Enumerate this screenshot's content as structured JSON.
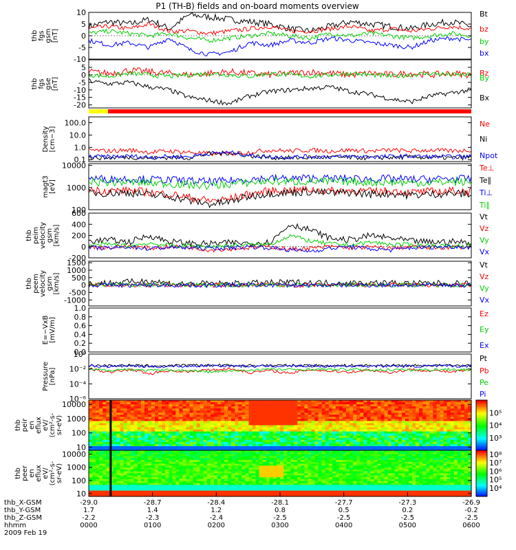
{
  "title": "P1 (TH-B) fields and on-board moments overview",
  "chart_data": [
    {
      "type": "line",
      "panel": "fgs_gsm",
      "ylabel": [
        "thb",
        "fgs",
        "gsm",
        "[nT]"
      ],
      "ylim": [
        -10,
        10
      ],
      "ticks": [
        "10",
        "5",
        "0",
        "-5",
        "-10"
      ],
      "tick_values": [
        10,
        5,
        0,
        -5,
        -10
      ],
      "series": [
        {
          "name": "Bt",
          "color": "#000000",
          "values": [
            4,
            6,
            5,
            7,
            3,
            9,
            8,
            7,
            6,
            5,
            3,
            2,
            4,
            6,
            5,
            4,
            3,
            5,
            6,
            4
          ]
        },
        {
          "name": "bz",
          "color": "#ff0000",
          "values": [
            3,
            4,
            3,
            5,
            2,
            2,
            1,
            2,
            3,
            4,
            2,
            2,
            3,
            4,
            2,
            3,
            2,
            3,
            4,
            3
          ]
        },
        {
          "name": "by",
          "color": "#00d000",
          "values": [
            1,
            2,
            1,
            0,
            1,
            -1,
            -2,
            -1,
            0,
            1,
            0,
            -1,
            1,
            0,
            1,
            0,
            -1,
            0,
            1,
            0
          ]
        },
        {
          "name": "bx",
          "color": "#0000ff",
          "values": [
            -2,
            -4,
            -3,
            -5,
            -1,
            -6,
            -8,
            -7,
            -3,
            -4,
            -2,
            -3,
            -1,
            -2,
            -3,
            -4,
            -5,
            -2,
            -1,
            -2
          ]
        }
      ]
    },
    {
      "type": "line",
      "panel": "fgs_gse",
      "ylabel": [
        "thb",
        "fgs",
        "gse",
        "[nT]"
      ],
      "ylim": [
        -22,
        10
      ],
      "ticks": [
        "5",
        "0",
        "-5",
        "-10",
        "-15",
        "-20"
      ],
      "tick_values": [
        5,
        0,
        -5,
        -10,
        -15,
        -20
      ],
      "series": [
        {
          "name": "Bz",
          "color": "#ff0000",
          "values": [
            2,
            1,
            3,
            2,
            1,
            0,
            1,
            2,
            1,
            0,
            1,
            2,
            1,
            0,
            1,
            0,
            1,
            0,
            1,
            0
          ]
        },
        {
          "name": "By",
          "color": "#00d000",
          "values": [
            0,
            -1,
            1,
            0,
            -1,
            0,
            1,
            0,
            -1,
            1,
            0,
            -1,
            0,
            1,
            0,
            -1,
            0,
            1,
            0,
            0
          ]
        },
        {
          "name": "Bx",
          "color": "#000000",
          "values": [
            -4,
            -6,
            -5,
            -8,
            -10,
            -15,
            -17,
            -19,
            -14,
            -11,
            -10,
            -9,
            -8,
            -11,
            -13,
            -16,
            -18,
            -14,
            -12,
            -10
          ]
        }
      ]
    },
    {
      "type": "line",
      "panel": "density",
      "scale": "log",
      "ylabel": [
        "Density",
        "[cm−3]"
      ],
      "ylim": [
        0.07,
        300
      ],
      "ticks": [
        "100.0",
        "10.0",
        "1.0",
        "0.1"
      ],
      "tick_values": [
        100,
        10,
        1,
        0.1
      ],
      "series": [
        {
          "name": "Ne",
          "color": "#ff0000",
          "values": [
            0.6,
            0.5,
            0.6,
            0.4,
            0.5,
            0.4,
            0.3,
            0.3,
            0.4,
            0.6,
            0.5,
            0.6,
            0.5,
            0.6,
            0.5,
            0.6,
            0.5,
            0.6,
            0.5,
            0.6
          ]
        },
        {
          "name": "Ni",
          "color": "#000000",
          "values": [
            0.15,
            0.14,
            0.16,
            0.13,
            0.15,
            0.14,
            0.3,
            0.35,
            0.2,
            0.15,
            0.14,
            0.15,
            0.16,
            0.15,
            0.14,
            0.15,
            0.16,
            0.15,
            0.14,
            0.15
          ]
        },
        {
          "name": "Npot",
          "color": "#0000ff",
          "values": [
            0.18,
            0.17,
            0.19,
            0.16,
            0.18,
            0.17,
            0.32,
            0.38,
            0.22,
            0.17,
            0.16,
            0.18,
            0.17,
            0.18,
            0.17,
            0.18,
            0.19,
            0.18,
            0.17,
            0.18
          ]
        }
      ]
    },
    {
      "type": "line",
      "panel": "temperature",
      "scale": "log",
      "ylabel": [
        "magt3",
        "[eV]"
      ],
      "ylim": [
        100,
        12000
      ],
      "ticks": [
        "10000",
        "1000",
        "100"
      ],
      "tick_values": [
        10000,
        1000,
        100
      ],
      "series": [
        {
          "name": "Te⊥",
          "color": "#ff0000",
          "values": [
            800,
            700,
            750,
            600,
            500,
            350,
            250,
            300,
            500,
            700,
            750,
            800,
            700,
            750,
            650,
            700,
            600,
            650,
            700,
            650
          ]
        },
        {
          "name": "Te∥",
          "color": "#000000",
          "values": [
            600,
            550,
            600,
            450,
            400,
            250,
            180,
            220,
            400,
            550,
            600,
            650,
            550,
            600,
            500,
            550,
            450,
            500,
            550,
            500
          ]
        },
        {
          "name": "Ti⊥",
          "color": "#0000ff",
          "values": [
            2600,
            2400,
            2500,
            2300,
            2200,
            2000,
            1800,
            2000,
            2400,
            2600,
            2500,
            2700,
            2500,
            2600,
            2400,
            2500,
            2300,
            2400,
            2500,
            2400
          ]
        },
        {
          "name": "Ti∥",
          "color": "#00d000",
          "values": [
            1800,
            1700,
            1750,
            1600,
            1500,
            1300,
            1200,
            1400,
            1700,
            1900,
            1800,
            1900,
            1800,
            1850,
            1700,
            1750,
            1650,
            1700,
            1800,
            1700
          ]
        }
      ]
    },
    {
      "type": "line",
      "panel": "peim_velocity",
      "ylabel": [
        "thb",
        "peim",
        "velocity",
        "gsm",
        "[km/s]"
      ],
      "ylim": [
        -200,
        600
      ],
      "ticks": [
        "600",
        "400",
        "200",
        "0",
        "-200"
      ],
      "tick_values": [
        600,
        400,
        200,
        0,
        -200
      ],
      "series": [
        {
          "name": "Vt",
          "color": "#000000",
          "values": [
            100,
            120,
            80,
            200,
            90,
            60,
            50,
            70,
            60,
            80,
            400,
            300,
            150,
            120,
            200,
            150,
            100,
            80,
            90,
            70
          ]
        },
        {
          "name": "Vz",
          "color": "#ff0000",
          "values": [
            0,
            -20,
            10,
            -30,
            0,
            -10,
            -60,
            -40,
            -20,
            0,
            -50,
            -30,
            0,
            -20,
            -10,
            -30,
            0,
            -20,
            -10,
            0
          ]
        },
        {
          "name": "Vy",
          "color": "#00d000",
          "values": [
            20,
            40,
            10,
            60,
            20,
            10,
            0,
            20,
            30,
            40,
            200,
            100,
            50,
            30,
            80,
            40,
            30,
            20,
            10,
            20
          ]
        },
        {
          "name": "Vx",
          "color": "#0000ff",
          "values": [
            -20,
            -30,
            0,
            -40,
            -10,
            -20,
            -30,
            -20,
            0,
            -20,
            -60,
            -80,
            -30,
            0,
            -40,
            -60,
            -20,
            -10,
            0,
            -10
          ]
        }
      ]
    },
    {
      "type": "line",
      "panel": "peem_velocity",
      "ylabel": [
        "thb",
        "peem",
        "velocity",
        "gsm",
        "[km/s]"
      ],
      "ylim": [
        -1400,
        1600
      ],
      "ticks": [
        "1500",
        "1000",
        "500",
        "0",
        "-500",
        "-1000"
      ],
      "tick_values": [
        1500,
        1000,
        500,
        0,
        -500,
        -1000
      ],
      "series": [
        {
          "name": "Vt",
          "color": "#000000",
          "values": [
            100,
            150,
            200,
            300,
            120,
            80,
            100,
            90,
            120,
            150,
            180,
            160,
            140,
            120,
            150,
            130,
            110,
            120,
            100,
            110
          ]
        },
        {
          "name": "Vz",
          "color": "#ff0000",
          "values": [
            0,
            -20,
            10,
            -30,
            0,
            -10,
            -20,
            -10,
            0,
            10,
            -20,
            -10,
            0,
            10,
            -10,
            0,
            10,
            -10,
            0,
            0
          ]
        },
        {
          "name": "Vy",
          "color": "#00d000",
          "values": [
            10,
            20,
            0,
            10,
            20,
            0,
            -10,
            0,
            10,
            20,
            10,
            0,
            10,
            20,
            0,
            10,
            20,
            0,
            10,
            0
          ]
        },
        {
          "name": "Vx",
          "color": "#0000ff",
          "values": [
            -10,
            0,
            -20,
            -10,
            0,
            -10,
            -20,
            0,
            -10,
            0,
            -10,
            -20,
            0,
            -10,
            0,
            -10,
            0,
            -10,
            0,
            -10
          ]
        }
      ]
    },
    {
      "type": "line",
      "panel": "efield",
      "ylabel": [
        "E=−VxB",
        "[mV/m]"
      ],
      "ylim": [
        0,
        1
      ],
      "ticks": [
        "1.0",
        "0.8",
        "0.6",
        "0.4",
        "0.2",
        "0.0"
      ],
      "tick_values": [
        1.0,
        0.8,
        0.6,
        0.4,
        0.2,
        0.0
      ],
      "series": [
        {
          "name": "Ez",
          "color": "#ff0000",
          "values": []
        },
        {
          "name": "Ey",
          "color": "#00d000",
          "values": []
        },
        {
          "name": "Ex",
          "color": "#0000ff",
          "values": []
        }
      ]
    },
    {
      "type": "line",
      "panel": "pressure",
      "scale": "log",
      "ylabel": [
        "Pressure",
        "[nPa]"
      ],
      "ylim": [
        1e-06,
        1
      ],
      "ticks": [
        "10⁰",
        "10⁻²",
        "10⁻⁴",
        "10⁻⁶"
      ],
      "tick_values": [
        1,
        0.01,
        0.0001,
        1e-06
      ],
      "series": [
        {
          "name": "Pt",
          "color": "#000000",
          "values": [
            0.03,
            0.028,
            0.03,
            0.025,
            0.028,
            0.03,
            0.032,
            0.03,
            0.028,
            0.03,
            0.029,
            0.03,
            0.028,
            0.03,
            0.029,
            0.03,
            0.028,
            0.03,
            0.029,
            0.03
          ]
        },
        {
          "name": "Pb",
          "color": "#ff0000",
          "values": [
            0.01,
            0.003,
            0.008,
            0.002,
            0.006,
            0.004,
            0.008,
            0.01,
            0.003,
            0.006,
            0.002,
            0.008,
            0.005,
            0.004,
            0.007,
            0.003,
            0.008,
            0.006,
            0.004,
            0.007
          ]
        },
        {
          "name": "Pe",
          "color": "#00d000",
          "values": [
            0.008,
            0.007,
            0.009,
            0.006,
            0.007,
            0.006,
            0.004,
            0.005,
            0.007,
            0.009,
            0.008,
            0.009,
            0.008,
            0.009,
            0.007,
            0.008,
            0.007,
            0.008,
            0.009,
            0.008
          ]
        },
        {
          "name": "Pi",
          "color": "#0000ff",
          "values": [
            0.025,
            0.022,
            0.026,
            0.02,
            0.022,
            0.024,
            0.028,
            0.026,
            0.022,
            0.025,
            0.024,
            0.025,
            0.023,
            0.025,
            0.024,
            0.025,
            0.023,
            0.025,
            0.024,
            0.025
          ]
        }
      ]
    },
    {
      "type": "heatmap",
      "panel": "peir_eflux",
      "scale": "log",
      "ylabel": [
        "thb",
        "peir",
        "en",
        "eflux",
        "eV/",
        "(cm²-s-",
        "sr-eV)"
      ],
      "ylim": [
        6,
        20000
      ],
      "ticks": [
        "10000",
        "1000",
        "100",
        "10"
      ],
      "tick_values": [
        10000,
        1000,
        100,
        10
      ],
      "colorbar_ticks": [
        "10⁵",
        "10⁴",
        "10³"
      ],
      "colorbar_tick_values": [
        100000,
        10000,
        1000
      ]
    },
    {
      "type": "heatmap",
      "panel": "peer_eflux",
      "scale": "log",
      "ylabel": [
        "thb",
        "peer",
        "en",
        "eflux",
        "eV/",
        "(cm²-s-",
        "sr-eV)"
      ],
      "ylim": [
        6,
        20000
      ],
      "ticks": [
        "10000",
        "1000",
        "100",
        "10"
      ],
      "tick_values": [
        10000,
        1000,
        100,
        10
      ],
      "colorbar_ticks": [
        "10⁸",
        "10⁷",
        "10⁶",
        "10⁵",
        "10⁴"
      ],
      "colorbar_tick_values": [
        100000000,
        10000000,
        1000000,
        100000,
        10000
      ]
    }
  ],
  "x_axis": {
    "rows": [
      {
        "label": "thb_X-GSM",
        "values": [
          "-29.0",
          "-28.7",
          "-28.4",
          "-28.1",
          "-27.7",
          "-27.3",
          "-26.9"
        ]
      },
      {
        "label": "thb_Y-GSM",
        "values": [
          "1.7",
          "1.4",
          "1.2",
          "0.8",
          "0.5",
          "0.2",
          "-0.2"
        ]
      },
      {
        "label": "thb_Z-GSM",
        "values": [
          "-2.2",
          "-2.3",
          "-2.4",
          "-2.5",
          "-2.5",
          "-2.5",
          "-2.5"
        ]
      },
      {
        "label": "hhmm",
        "values": [
          "0000",
          "0100",
          "0200",
          "0300",
          "0400",
          "0500",
          "0600"
        ]
      }
    ],
    "date": "2009 Feb 19"
  }
}
